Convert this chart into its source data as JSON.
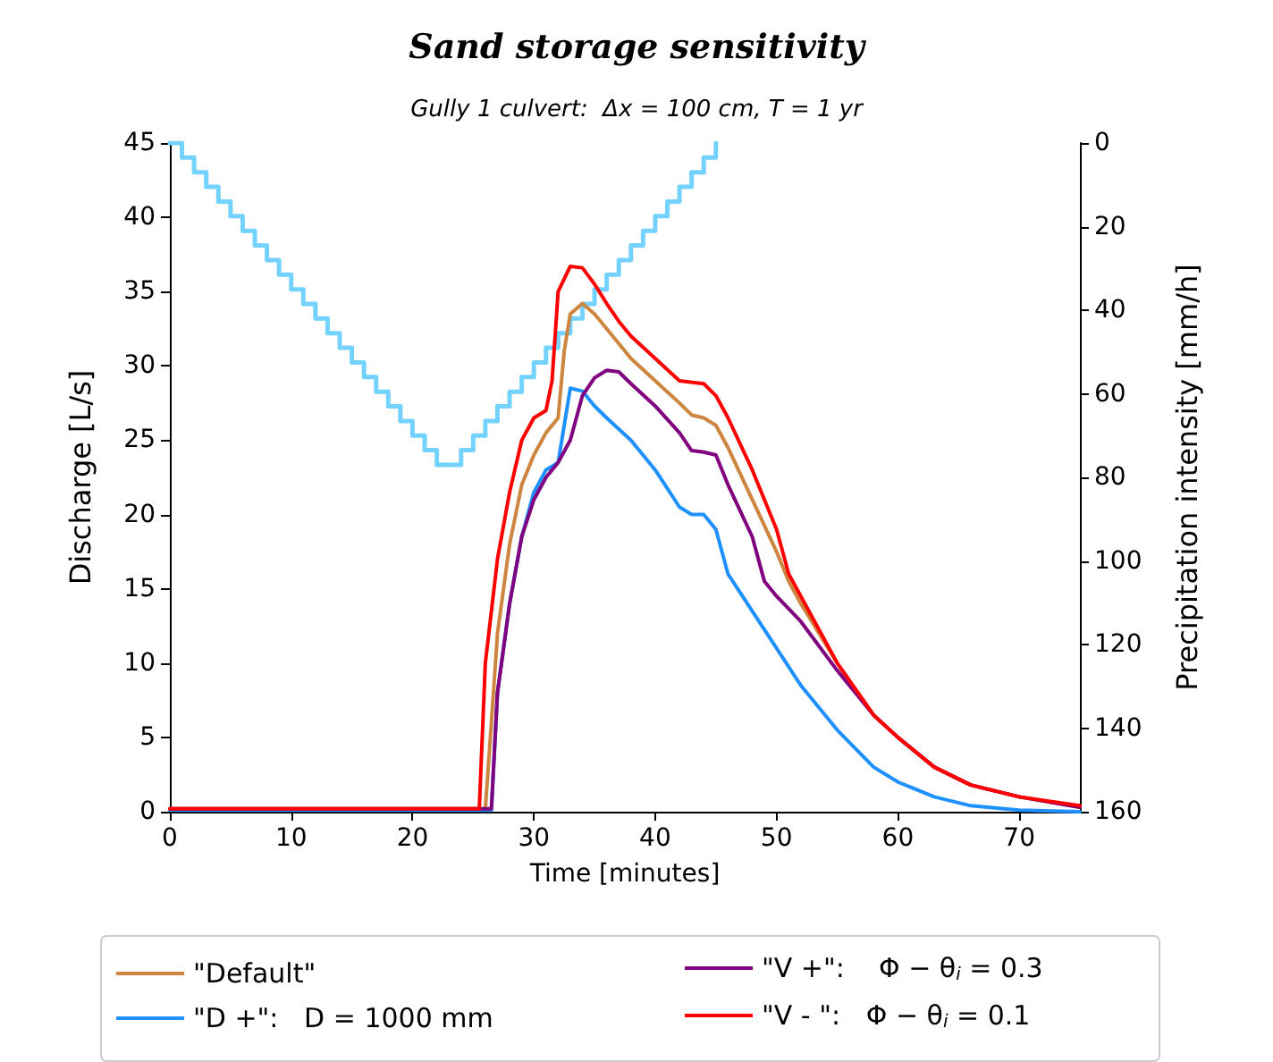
{
  "chart_data": {
    "type": "line",
    "title": "Sand storage sensitivity",
    "subtitle": "Gully 1 culvert:  Δx = 100 cm, T = 1 yr",
    "xlabel": "Time [minutes]",
    "ylabel": "Discharge [L/s]",
    "y2label": "Precipitation intensity [mm/h]",
    "xlim": [
      0,
      75
    ],
    "xticks": [
      0,
      10,
      20,
      30,
      40,
      50,
      60,
      70
    ],
    "ylim": [
      0,
      45
    ],
    "yticks": [
      0,
      5,
      10,
      15,
      20,
      25,
      30,
      35,
      40,
      45
    ],
    "y2lim": [
      160,
      0
    ],
    "y2ticks": [
      0,
      20,
      40,
      60,
      80,
      100,
      120,
      140,
      160
    ],
    "legend": "bottom",
    "marker": "none",
    "line_style": "solid",
    "grid": false,
    "series": [
      {
        "name": "\"Default\"",
        "color": "#cd853f",
        "x": [
          0,
          26,
          26.5,
          27,
          28,
          29,
          30,
          31,
          32,
          32.5,
          33,
          34,
          35,
          36,
          38,
          40,
          42,
          43,
          44,
          45,
          46,
          48,
          50,
          51,
          52,
          55,
          58,
          60,
          63,
          66,
          70,
          75
        ],
        "values": [
          0.2,
          0.2,
          6,
          12,
          18,
          22,
          24,
          25.5,
          26.5,
          31,
          33.5,
          34.2,
          33.5,
          32.5,
          30.5,
          29,
          27.5,
          26.7,
          26.5,
          26,
          24.5,
          21,
          17.5,
          15.5,
          14,
          10,
          6.5,
          5,
          3,
          1.8,
          1,
          0.3
        ]
      },
      {
        "name": "\"D +\":   D = 1000 mm",
        "color": "#1e90ff",
        "x": [
          0,
          26.5,
          27,
          28,
          29,
          30,
          31,
          32,
          32.5,
          33,
          34,
          35,
          36,
          38,
          40,
          42,
          43,
          44,
          45,
          46,
          48,
          50,
          52,
          55,
          58,
          60,
          63,
          66,
          70,
          75
        ],
        "values": [
          0.1,
          0.1,
          8,
          14,
          18.5,
          21.5,
          23,
          23.5,
          26,
          28.5,
          28.3,
          27.3,
          26.5,
          25,
          23,
          20.5,
          20,
          20,
          19,
          16,
          13.5,
          11,
          8.5,
          5.5,
          3,
          2,
          1,
          0.4,
          0.1,
          0
        ]
      },
      {
        "name": "\"V +\":    Φ − θ$_{i}$ = 0.3",
        "color": "#800080",
        "x": [
          0,
          26.5,
          27,
          28,
          29,
          30,
          31,
          32,
          33,
          34,
          35,
          36,
          37,
          38,
          40,
          42,
          43,
          44,
          45,
          46,
          48,
          49,
          50,
          52,
          55,
          58,
          60,
          63,
          66,
          70,
          75
        ],
        "values": [
          0.2,
          0.2,
          8,
          14,
          18.5,
          21,
          22.5,
          23.5,
          25,
          28,
          29.2,
          29.7,
          29.6,
          28.8,
          27.3,
          25.5,
          24.3,
          24.2,
          24,
          22,
          18.5,
          15.5,
          14.5,
          12.8,
          9.5,
          6.5,
          5,
          3,
          1.8,
          1,
          0.3
        ]
      },
      {
        "name": "\"V - \":   Φ − θ$_{i}$ = 0.1",
        "color": "#ff0000",
        "x": [
          0,
          25.5,
          26,
          27,
          28,
          29,
          30,
          31,
          31.5,
          32,
          33,
          34,
          35,
          36,
          37,
          38,
          40,
          42,
          44,
          45,
          46,
          48,
          50,
          51,
          52,
          55,
          58,
          60,
          63,
          66,
          70,
          75
        ],
        "values": [
          0.2,
          0.2,
          10,
          17,
          21.5,
          25,
          26.5,
          27,
          29,
          35,
          36.7,
          36.6,
          35.5,
          34.2,
          33,
          32,
          30.5,
          29,
          28.8,
          28,
          26.5,
          23,
          19,
          16,
          14.5,
          10,
          6.5,
          5,
          3,
          1.8,
          1,
          0.4
        ]
      },
      {
        "type": "step",
        "axis": "y2",
        "color": "#73d2ff",
        "x": [
          0,
          1,
          2,
          3,
          4,
          5,
          6,
          7,
          8,
          9,
          10,
          11,
          12,
          13,
          14,
          15,
          16,
          17,
          18,
          19,
          20,
          21,
          22,
          23,
          24,
          25,
          26,
          27,
          28,
          29,
          30,
          31,
          32,
          33,
          34,
          35,
          36,
          37,
          38,
          39,
          40,
          41,
          42,
          43,
          44,
          45
        ],
        "values": [
          0,
          3.5,
          7,
          10.5,
          14,
          17.5,
          21,
          24.5,
          28,
          31.5,
          35,
          38.5,
          42,
          45.5,
          49,
          52.5,
          56,
          59.5,
          63,
          66.5,
          70,
          73.5,
          77,
          77,
          73.5,
          70,
          66.5,
          63,
          59.5,
          56,
          52.5,
          49,
          45.5,
          42,
          38.5,
          35,
          31.5,
          28,
          24.5,
          21,
          17.5,
          14,
          10.5,
          7,
          3.5,
          0
        ]
      }
    ]
  }
}
